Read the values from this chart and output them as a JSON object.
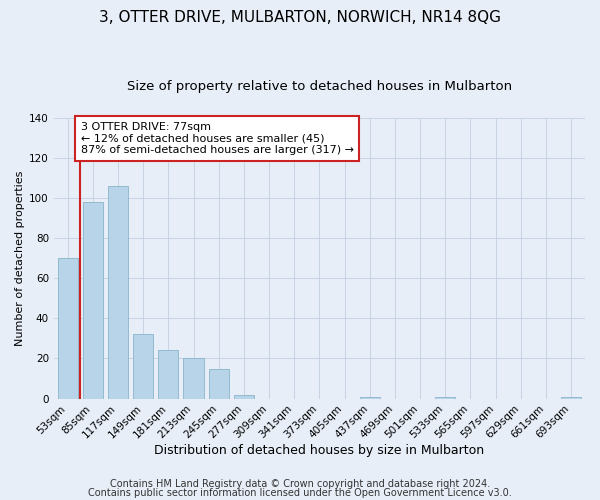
{
  "title": "3, OTTER DRIVE, MULBARTON, NORWICH, NR14 8QG",
  "subtitle": "Size of property relative to detached houses in Mulbarton",
  "xlabel": "Distribution of detached houses by size in Mulbarton",
  "ylabel": "Number of detached properties",
  "bar_labels": [
    "53sqm",
    "85sqm",
    "117sqm",
    "149sqm",
    "181sqm",
    "213sqm",
    "245sqm",
    "277sqm",
    "309sqm",
    "341sqm",
    "373sqm",
    "405sqm",
    "437sqm",
    "469sqm",
    "501sqm",
    "533sqm",
    "565sqm",
    "597sqm",
    "629sqm",
    "661sqm",
    "693sqm"
  ],
  "bar_values": [
    70,
    98,
    106,
    32,
    24,
    20,
    15,
    2,
    0,
    0,
    0,
    0,
    1,
    0,
    0,
    1,
    0,
    0,
    0,
    0,
    1
  ],
  "bar_color": "#b8d4e8",
  "bar_edge_color": "#8ab4cc",
  "annotation_title": "3 OTTER DRIVE: 77sqm",
  "annotation_line1": "← 12% of detached houses are smaller (45)",
  "annotation_line2": "87% of semi-detached houses are larger (317) →",
  "annotation_box_facecolor": "#ffffff",
  "annotation_box_edgecolor": "#cc2222",
  "red_line_color": "#cc2222",
  "ylim": [
    0,
    140
  ],
  "yticks": [
    0,
    20,
    40,
    60,
    80,
    100,
    120,
    140
  ],
  "bg_color": "#e8eef8",
  "plot_bg_color": "#e8eef8",
  "grid_color": "#c8d4e4",
  "title_fontsize": 11,
  "subtitle_fontsize": 9.5,
  "xlabel_fontsize": 9,
  "ylabel_fontsize": 8,
  "tick_fontsize": 7.5,
  "annotation_fontsize": 8,
  "footer_fontsize": 7,
  "footer1": "Contains HM Land Registry data © Crown copyright and database right 2024.",
  "footer2": "Contains public sector information licensed under the Open Government Licence v3.0."
}
